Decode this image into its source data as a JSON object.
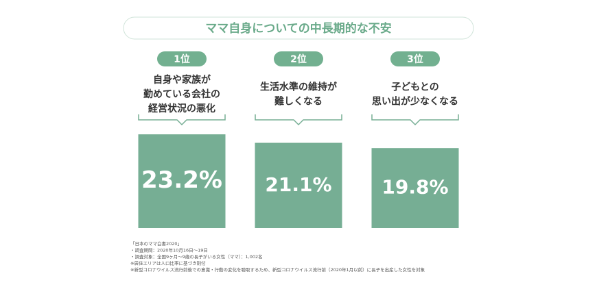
{
  "chart_data": {
    "type": "bar",
    "title": "ママ自身についての中長期的な不安",
    "categories": [
      "1位",
      "2位",
      "3位"
    ],
    "descriptions": [
      [
        "自身や家族が",
        "勤めている会社の",
        "経営状況の悪化"
      ],
      [
        "生活水準の維持が",
        "難しくなる"
      ],
      [
        "子どもとの",
        "思い出が少なくなる"
      ]
    ],
    "values": [
      23.2,
      21.1,
      19.8
    ],
    "value_labels": [
      "23.2%",
      "21.1%",
      "19.8%"
    ],
    "color": "#76ae94",
    "notes": [
      "「日本のママ白書2020」",
      "・調査期間：2020年10月16日〜19日",
      "・調査対象：全国9ヶ月〜9歳の長子がいる女性（ママ）：1,002名",
      "※居住エリアは人口比率に基づき割付",
      "※新型コロナウイルス流行前後での意識・行動の変化を聴取するため、新型コロナウイルス流行前（2020年1月以前）に長子を出産した女性を対象"
    ]
  }
}
